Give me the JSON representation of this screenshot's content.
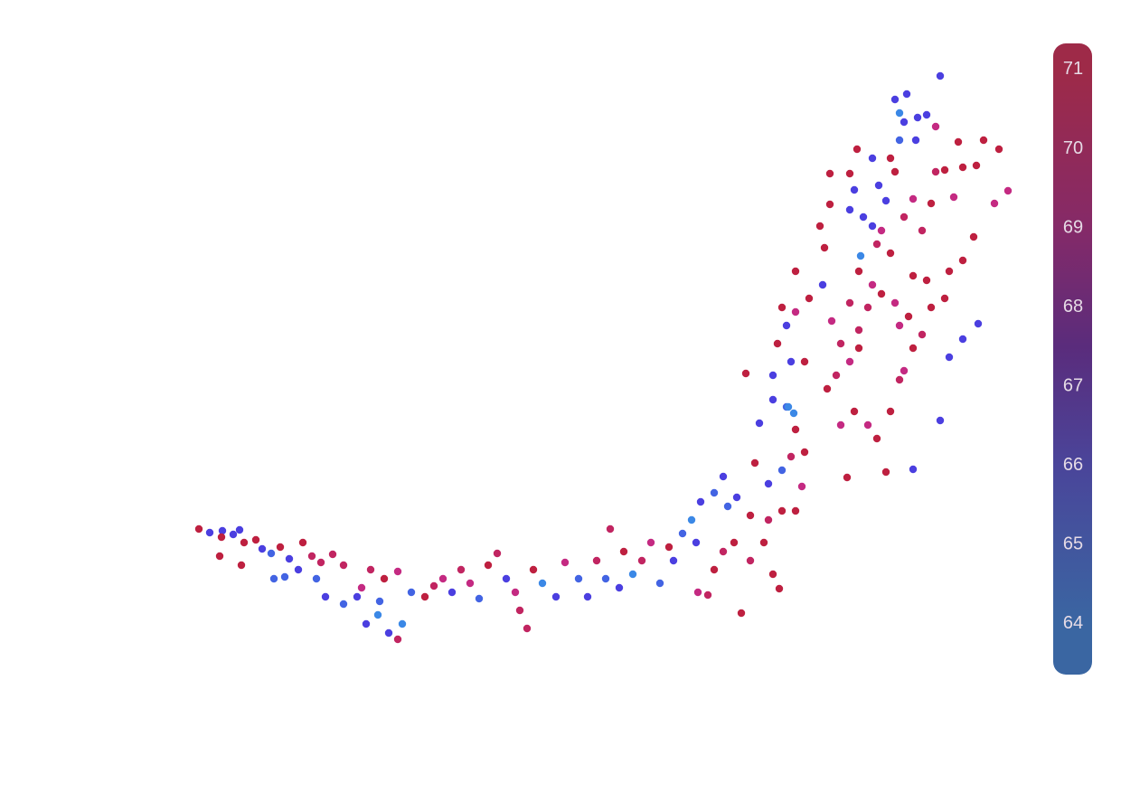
{
  "chart_data": {
    "type": "scatter",
    "xlim": [
      0,
      1240
    ],
    "ylim": [
      888,
      0
    ],
    "x": [
      220,
      232,
      246,
      258,
      265,
      245,
      270,
      283,
      290,
      300,
      310,
      320,
      335,
      345,
      355,
      368,
      380,
      243,
      267,
      303,
      315,
      330,
      350,
      360,
      380,
      395,
      405,
      418,
      430,
      440,
      445,
      420,
      400,
      410,
      425,
      440,
      455,
      470,
      480,
      490,
      500,
      510,
      520,
      530,
      540,
      550,
      560,
      570,
      575,
      583,
      590,
      600,
      615,
      625,
      640,
      650,
      660,
      670,
      675,
      685,
      690,
      700,
      710,
      720,
      730,
      740,
      745,
      755,
      765,
      770,
      772,
      783,
      790,
      800,
      812,
      820,
      830,
      845,
      855,
      862,
      775,
      790,
      805,
      815,
      830,
      850,
      865,
      880,
      800,
      835,
      850,
      865,
      887,
      875,
      890,
      840,
      855,
      870,
      880,
      825,
      855,
      875,
      890,
      860,
      870,
      880,
      895,
      865,
      880,
      910,
      920,
      915,
      925,
      940,
      950,
      930,
      945,
      960,
      970,
      937,
      980,
      1010,
      985,
      995,
      1000,
      1010,
      1020,
      1030,
      1045,
      1050,
      1065,
      1082,
      1065,
      1050,
      1040,
      960,
      975,
      990,
      1005,
      950,
      965,
      940,
      985,
      970,
      975,
      955,
      965,
      940,
      945,
      918,
      907,
      912,
      918,
      940,
      948,
      965,
      972,
      980,
      990,
      1000,
      1010,
      1020,
      1030,
      1035,
      1045,
      1055,
      1065,
      1080,
      1088,
      1100,
      1105,
      1115,
      1060,
      1035,
      1025,
      1015,
      1000,
      995,
      990,
      1003,
      995,
      1040,
      1013,
      985,
      952,
      878,
      872,
      1077,
      1010,
      1025,
      995,
      950,
      930
    ],
    "y": [
      585,
      589,
      587,
      591,
      586,
      594,
      600,
      597,
      607,
      612,
      605,
      618,
      600,
      615,
      622,
      613,
      625,
      615,
      625,
      640,
      638,
      630,
      640,
      660,
      668,
      660,
      690,
      680,
      700,
      707,
      690,
      665,
      650,
      630,
      640,
      632,
      655,
      660,
      648,
      640,
      655,
      630,
      645,
      662,
      625,
      612,
      640,
      655,
      675,
      695,
      630,
      645,
      660,
      622,
      640,
      660,
      620,
      640,
      585,
      650,
      610,
      635,
      620,
      600,
      645,
      605,
      620,
      590,
      575,
      600,
      655,
      658,
      630,
      610,
      600,
      678,
      620,
      600,
      635,
      651,
      555,
      545,
      560,
      550,
      570,
      575,
      565,
      565,
      527,
      512,
      535,
      520,
      538,
      505,
      500,
      468,
      442,
      450,
      475,
      413,
      415,
      400,
      400,
      380,
      360,
      345,
      330,
      340,
      300,
      315,
      355,
      430,
      415,
      400,
      385,
      470,
      455,
      470,
      485,
      528,
      522,
      519,
      455,
      420,
      410,
      385,
      370,
      340,
      330,
      300,
      288,
      358,
      375,
      395,
      465,
      340,
      325,
      335,
      350,
      300,
      315,
      335,
      280,
      270,
      255,
      240,
      250,
      232,
      210,
      226,
      250,
      274,
      192,
      192,
      165,
      175,
      205,
      222,
      190,
      240,
      220,
      255,
      225,
      190,
      188,
      218,
      185,
      183,
      155,
      225,
      165,
      211,
      157,
      140,
      127,
      130,
      135,
      155,
      110,
      104,
      125,
      84,
      155,
      175,
      283,
      457,
      450,
      262,
      305,
      310,
      360,
      365,
      380
    ],
    "values": [
      71,
      66,
      66,
      66,
      66,
      71,
      71,
      71,
      66,
      65,
      71,
      66,
      71,
      70,
      70,
      70,
      70,
      71,
      71,
      65,
      65,
      66,
      65,
      66,
      65,
      66,
      66,
      64,
      66,
      70,
      64,
      65,
      69,
      70,
      71,
      69,
      65,
      71,
      70,
      69,
      66,
      70,
      69,
      65,
      71,
      70,
      66,
      69,
      70,
      70,
      71,
      64,
      66,
      69,
      65,
      66,
      70,
      65,
      70,
      66,
      71,
      64,
      70,
      69,
      65,
      71,
      66,
      65,
      64,
      66,
      69,
      70,
      71,
      70,
      71,
      71,
      70,
      71,
      71,
      71,
      66,
      65,
      65,
      66,
      71,
      70,
      71,
      71,
      66,
      71,
      66,
      65,
      69,
      70,
      71,
      66,
      66,
      65,
      71,
      71,
      66,
      66,
      71,
      71,
      66,
      69,
      71,
      71,
      71,
      66,
      69,
      71,
      70,
      69,
      71,
      69,
      71,
      69,
      71,
      71,
      71,
      66,
      71,
      70,
      69,
      71,
      70,
      71,
      71,
      71,
      71,
      66,
      66,
      66,
      66,
      70,
      71,
      69,
      71,
      71,
      69,
      70,
      71,
      70,
      69,
      66,
      66,
      66,
      66,
      71,
      71,
      71,
      71,
      71,
      71,
      66,
      66,
      66,
      71,
      70,
      69,
      70,
      71,
      70,
      71,
      69,
      71,
      71,
      71,
      69,
      71,
      69,
      71,
      69,
      66,
      66,
      66,
      65,
      66,
      66,
      64,
      66,
      66,
      71,
      64,
      64,
      64,
      71,
      71,
      71,
      69,
      70,
      70
    ],
    "marker_colors": [
      {
        "value": 64,
        "color": "#3b88e6"
      },
      {
        "value": 66,
        "color": "#4b3fe0"
      },
      {
        "value": 68,
        "color": "#8a2fc0"
      },
      {
        "value": 69,
        "color": "#c42a82"
      },
      {
        "value": 71,
        "color": "#be2040"
      }
    ],
    "colorbar_lim": [
      63.36,
      71.33
    ],
    "colorbar_ticks": [
      64,
      65,
      66,
      67,
      68,
      69,
      70,
      71
    ],
    "colorbar_colors": [
      {
        "value": 64,
        "color": "#3a66a2"
      },
      {
        "value": 66,
        "color": "#4a459a"
      },
      {
        "value": 67.5,
        "color": "#5a2c7c"
      },
      {
        "value": 69,
        "color": "#852a68"
      },
      {
        "value": 71,
        "color": "#9e2a48"
      }
    ]
  }
}
